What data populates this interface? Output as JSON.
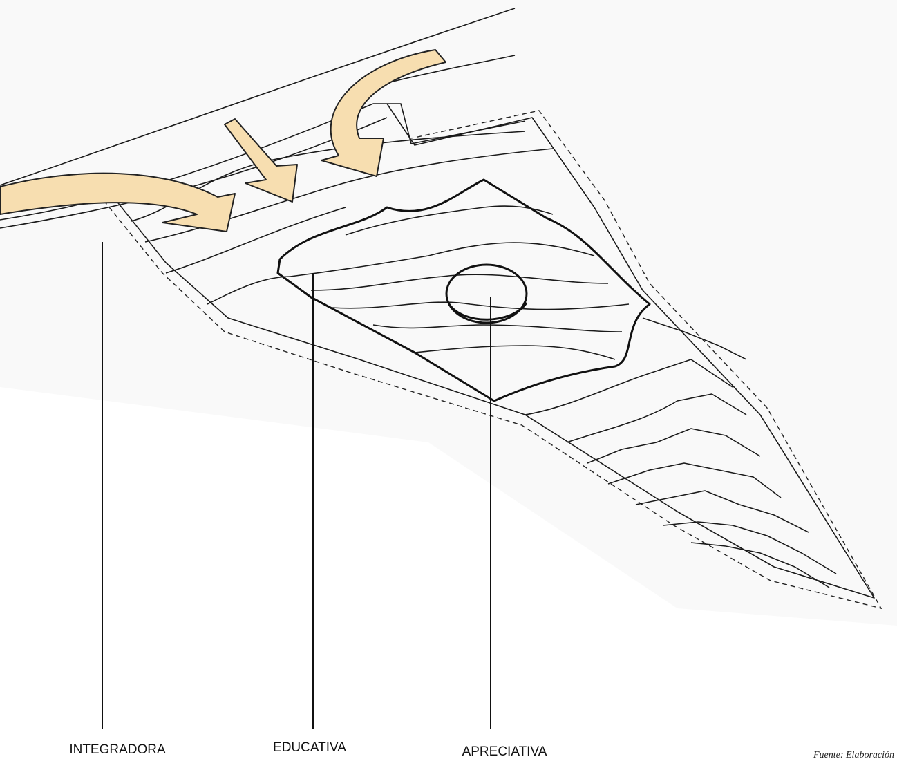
{
  "labels": [
    "INTEGRADORA",
    "EDUCATIVA",
    "APRECIATIVA"
  ],
  "source": "Fuente: Elaboración"
}
